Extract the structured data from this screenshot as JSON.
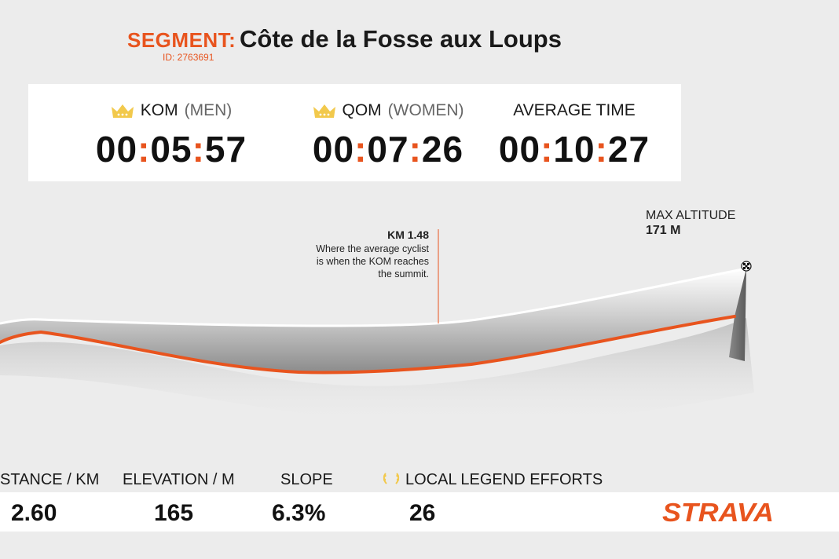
{
  "header": {
    "segment_label": "SEGMENT:",
    "segment_id": "ID: 2763691",
    "title": "Côte de la Fosse aux Loups"
  },
  "times": {
    "kom": {
      "label": "KOM",
      "sub": "(MEN)",
      "icon": "crown-icon",
      "h": "00",
      "m": "05",
      "s": "57"
    },
    "qom": {
      "label": "QOM",
      "sub": "(WOMEN)",
      "icon": "crown-icon",
      "h": "00",
      "m": "07",
      "s": "26"
    },
    "avg": {
      "label": "AVERAGE TIME",
      "h": "00",
      "m": "10",
      "s": "27"
    }
  },
  "annotation": {
    "title": "KM 1.48",
    "line1": "Where the average cyclist",
    "line2": "is when the KOM reaches",
    "line3": "the summit."
  },
  "max_altitude": {
    "label": "MAX ALTITUDE",
    "value": "171 M"
  },
  "stats": {
    "distance": {
      "label": "STANCE / KM",
      "value": "2.60"
    },
    "elevation": {
      "label": "ELEVATION / M",
      "value": "165"
    },
    "slope": {
      "label": "SLOPE",
      "value": "6.3%"
    },
    "legend": {
      "label": "LOCAL LEGEND EFFORTS",
      "value": "26",
      "icon": "laurel-icon"
    }
  },
  "brand": {
    "name": "STRAVA",
    "color": "#e8541e"
  },
  "colors": {
    "accent": "#e8541e",
    "text": "#1a1a1a",
    "background": "#ececec"
  }
}
